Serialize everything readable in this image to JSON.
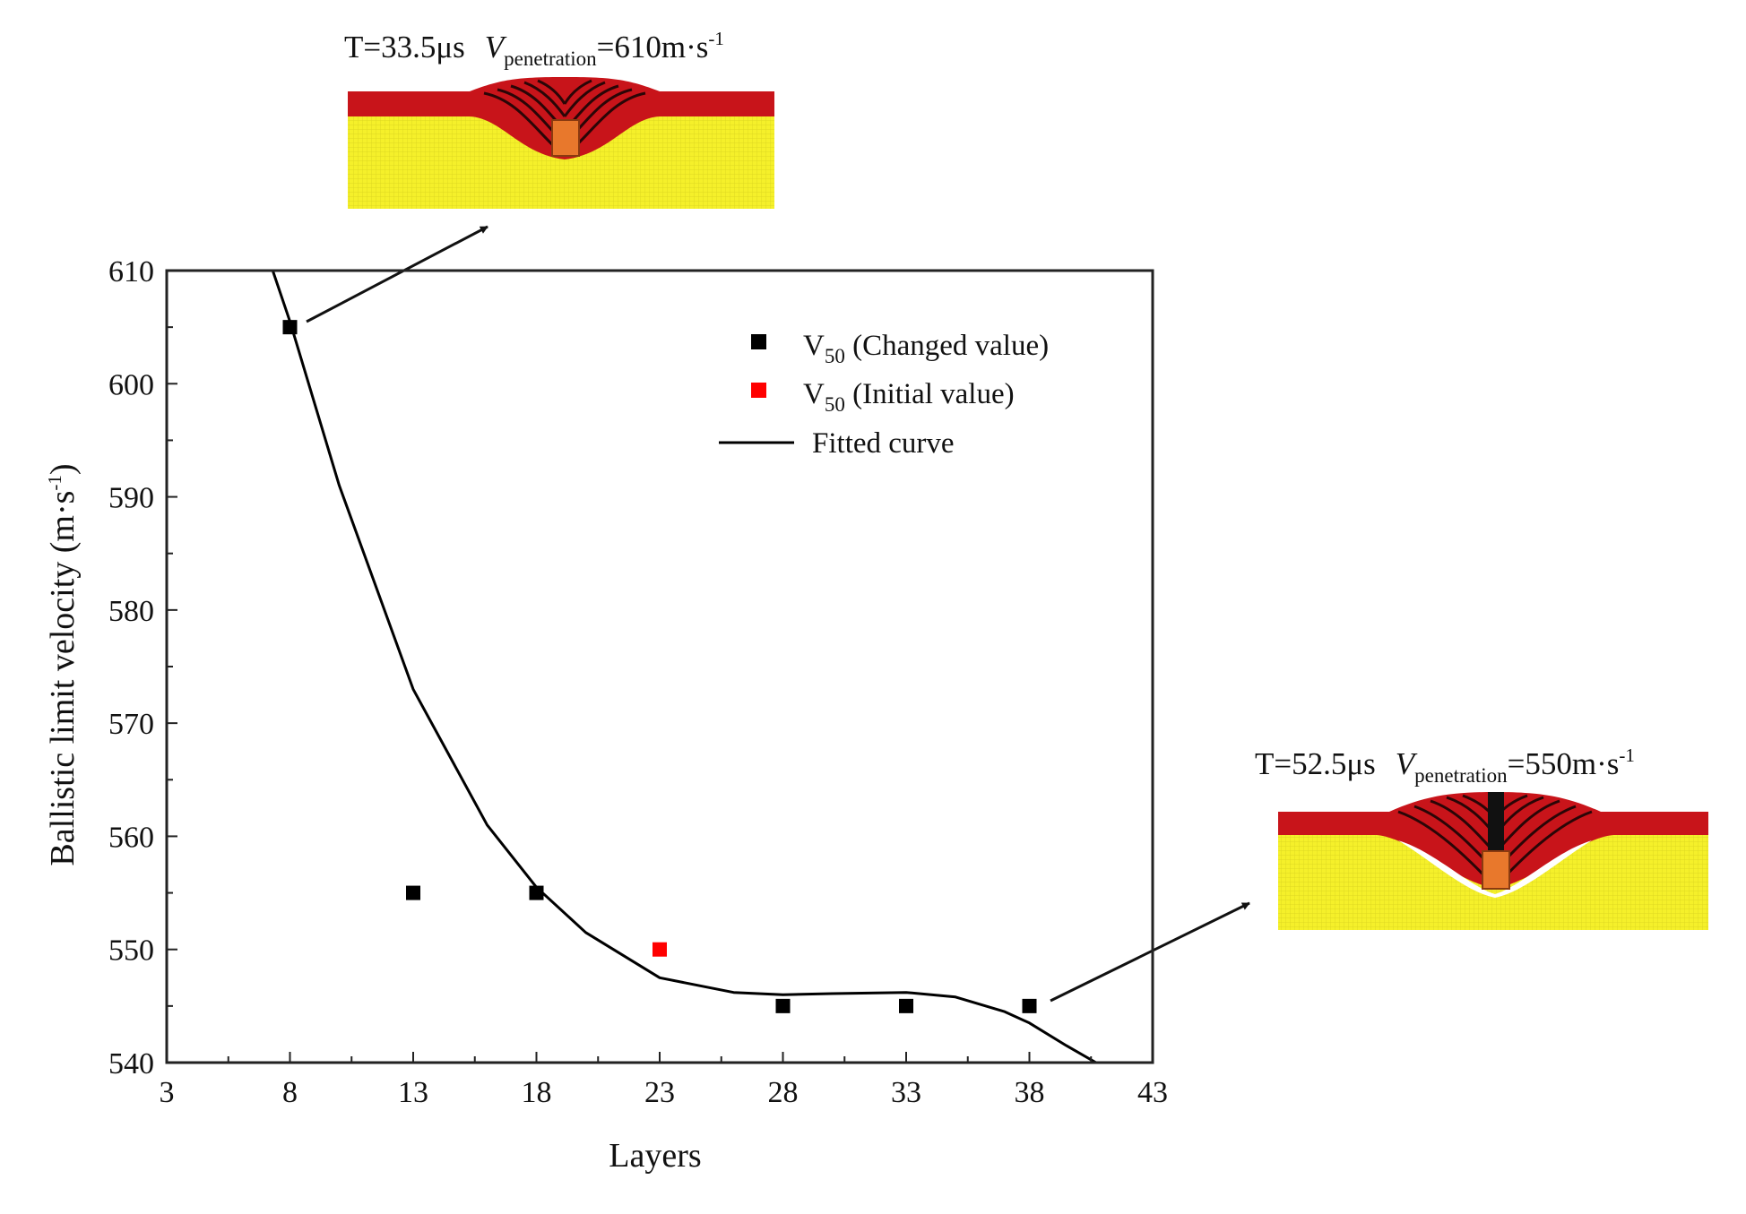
{
  "chart_data": {
    "type": "scatter",
    "xlabel": "Layers",
    "ylabel_main": "Ballistic limit velocity (m·s",
    "ylabel_sup": "-1",
    "ylabel_close": ")",
    "xlim": [
      3,
      43
    ],
    "ylim": [
      540,
      610
    ],
    "x_ticks": [
      3,
      8,
      13,
      18,
      23,
      28,
      33,
      38,
      43
    ],
    "y_ticks": [
      540,
      550,
      560,
      570,
      580,
      590,
      600,
      610
    ],
    "grid": false,
    "legend_position": "top-right",
    "series": [
      {
        "legend_main": "V",
        "legend_sub": "50",
        "legend_rest": " (Changed value)",
        "marker": "square",
        "color": "#000000",
        "points": [
          [
            8,
            605
          ],
          [
            13,
            555
          ],
          [
            18,
            555
          ],
          [
            28,
            545
          ],
          [
            33,
            545
          ],
          [
            38,
            545
          ]
        ]
      },
      {
        "legend_main": "V",
        "legend_sub": "50",
        "legend_rest": " (Initial value)",
        "marker": "square",
        "color": "#ff0000",
        "points": [
          [
            23,
            550
          ]
        ]
      },
      {
        "legend_main": "Fitted curve",
        "marker": "line",
        "color": "#000000",
        "curve": [
          [
            7.3,
            610
          ],
          [
            8,
            605.5
          ],
          [
            10,
            591
          ],
          [
            13,
            573
          ],
          [
            16,
            561
          ],
          [
            18,
            555.5
          ],
          [
            20,
            551.5
          ],
          [
            23,
            547.5
          ],
          [
            26,
            546.2
          ],
          [
            28,
            546
          ],
          [
            30,
            546.1
          ],
          [
            33,
            546.2
          ],
          [
            35,
            545.8
          ],
          [
            37,
            544.5
          ],
          [
            38,
            543.5
          ],
          [
            39.5,
            541.5
          ],
          [
            40.7,
            540
          ]
        ]
      }
    ],
    "annotations": [
      {
        "time": "T=33.5μs",
        "var_main": "V",
        "var_sub": "penetration",
        "value": "=610m·s",
        "value_sup": "-1",
        "points_to": [
          8,
          605
        ]
      },
      {
        "time": "T=52.5μs",
        "var_main": "V",
        "var_sub": "penetration",
        "value": "=550m·s",
        "value_sup": "-1",
        "points_to": [
          38,
          545
        ]
      }
    ]
  },
  "colors": {
    "target_top": "#c8141a",
    "target_base": "#f5f02a",
    "fiber": "#1a0505",
    "projectile": "#e8782c"
  }
}
